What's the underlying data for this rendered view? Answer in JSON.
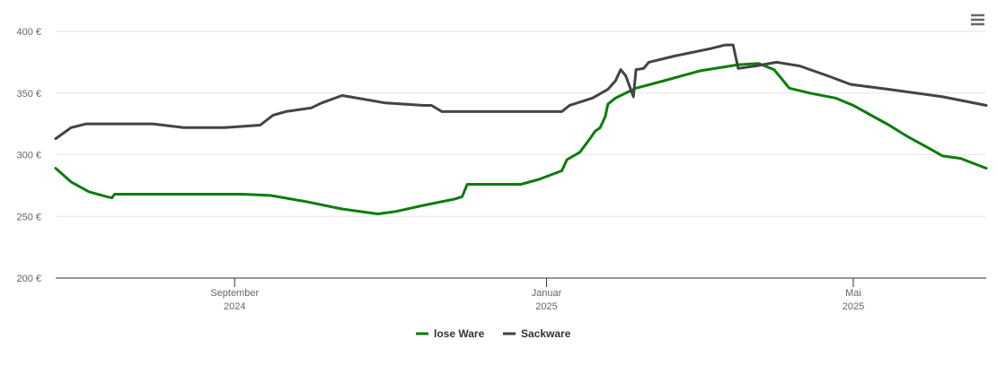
{
  "chart_data": {
    "type": "line",
    "xlim": [
      "2024-06-23",
      "2025-06-22"
    ],
    "xticks": [
      {
        "value": "2024-09-01",
        "label": "September",
        "sublabel": "2024"
      },
      {
        "value": "2025-01-01",
        "label": "Januar",
        "sublabel": "2025"
      },
      {
        "value": "2025-05-01",
        "label": "Mai",
        "sublabel": "2025"
      }
    ],
    "ylim": [
      200,
      400
    ],
    "yticks": [
      {
        "value": 200,
        "label": "200 €"
      },
      {
        "value": 250,
        "label": "250 €"
      },
      {
        "value": 300,
        "label": "300 €"
      },
      {
        "value": 350,
        "label": "350 €"
      },
      {
        "value": 400,
        "label": "400 €"
      }
    ],
    "grid": true,
    "legend": "bottom",
    "series": [
      {
        "name": "lose Ware",
        "color": "#0a7d0a",
        "x": [
          "2024-06-23",
          "2024-06-29",
          "2024-07-06",
          "2024-07-13",
          "2024-07-15",
          "2024-07-16",
          "2024-08-10",
          "2024-09-04",
          "2024-09-15",
          "2024-09-29",
          "2024-10-13",
          "2024-10-27",
          "2024-11-03",
          "2024-11-14",
          "2024-11-21",
          "2024-11-26",
          "2024-11-29",
          "2024-12-01",
          "2024-12-05",
          "2024-12-22",
          "2024-12-29",
          "2025-01-07",
          "2025-01-09",
          "2025-01-14",
          "2025-01-18",
          "2025-01-20",
          "2025-01-22",
          "2025-01-24",
          "2025-01-25",
          "2025-01-28",
          "2025-02-02",
          "2025-02-05",
          "2025-02-16",
          "2025-03-02",
          "2025-03-17",
          "2025-03-25",
          "2025-03-31",
          "2025-04-06",
          "2025-04-14",
          "2025-04-24",
          "2025-05-01",
          "2025-05-08",
          "2025-05-15",
          "2025-05-22",
          "2025-05-30",
          "2025-06-05",
          "2025-06-12",
          "2025-06-22"
        ],
        "values": [
          289,
          278,
          270,
          266,
          265,
          268,
          268,
          268,
          267,
          262,
          256,
          252,
          254,
          259,
          262,
          264,
          266,
          276,
          276,
          276,
          280,
          287,
          296,
          302,
          313,
          319,
          322,
          331,
          341,
          346,
          351,
          354,
          360,
          368,
          373,
          374,
          369,
          354,
          350,
          346,
          340,
          332,
          324,
          315,
          306,
          299,
          297,
          289
        ]
      },
      {
        "name": "Sackware",
        "color": "#434348",
        "x": [
          "2024-06-23",
          "2024-06-29",
          "2024-07-05",
          "2024-07-31",
          "2024-08-12",
          "2024-08-28",
          "2024-09-11",
          "2024-09-16",
          "2024-09-21",
          "2024-10-01",
          "2024-10-05",
          "2024-10-13",
          "2024-10-16",
          "2024-10-30",
          "2024-11-14",
          "2024-11-17",
          "2024-11-21",
          "2024-12-15",
          "2025-01-07",
          "2025-01-10",
          "2025-01-19",
          "2025-01-25",
          "2025-01-28",
          "2025-01-30",
          "2025-02-01",
          "2025-02-04",
          "2025-02-05",
          "2025-02-08",
          "2025-02-10",
          "2025-02-20",
          "2025-03-06",
          "2025-03-12",
          "2025-03-15",
          "2025-03-17",
          "2025-03-24",
          "2025-04-01",
          "2025-04-10",
          "2025-04-21",
          "2025-04-30",
          "2025-05-15",
          "2025-06-05",
          "2025-06-22"
        ],
        "values": [
          313,
          322,
          325,
          325,
          322,
          322,
          324,
          332,
          335,
          338,
          342,
          348,
          347,
          342,
          340,
          340,
          335,
          335,
          335,
          340,
          346,
          353,
          360,
          369,
          364,
          347,
          369,
          370,
          375,
          380,
          386,
          389,
          389,
          370,
          372,
          375,
          372,
          364,
          357,
          353,
          347,
          340
        ]
      }
    ]
  }
}
